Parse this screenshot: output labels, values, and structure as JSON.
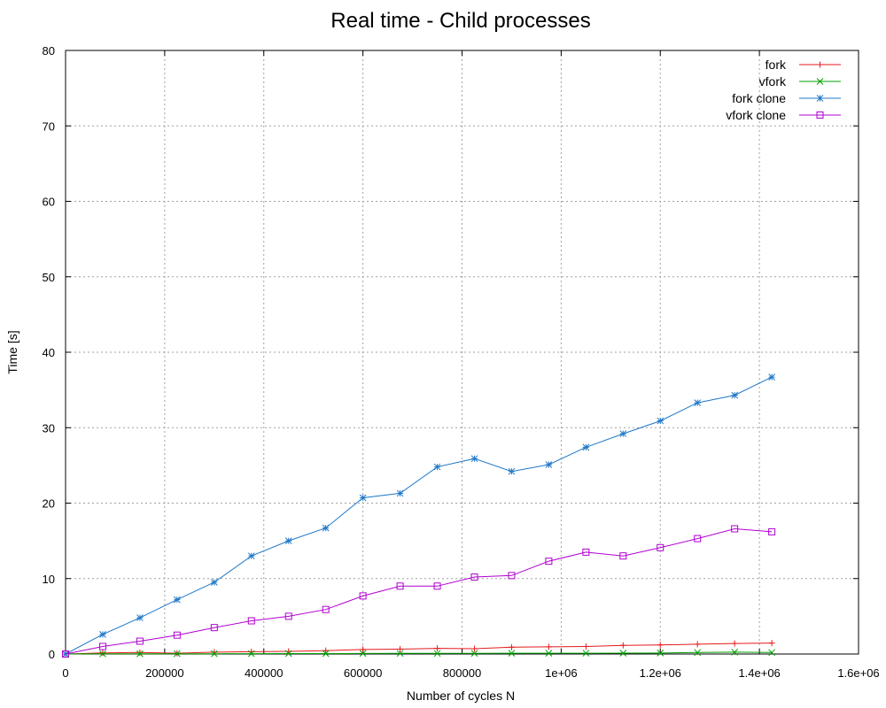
{
  "chart_data": {
    "type": "line",
    "title": "Real time - Child processes",
    "xlabel": "Number of cycles N",
    "ylabel": "Time [s]",
    "xlim": [
      0,
      1600000
    ],
    "ylim": [
      0,
      80
    ],
    "x_ticks": [
      {
        "value": 0,
        "label": "0"
      },
      {
        "value": 200000,
        "label": "200000"
      },
      {
        "value": 400000,
        "label": "400000"
      },
      {
        "value": 600000,
        "label": "600000"
      },
      {
        "value": 800000,
        "label": "800000"
      },
      {
        "value": 1000000,
        "label": "1e+06"
      },
      {
        "value": 1200000,
        "label": "1.2e+06"
      },
      {
        "value": 1400000,
        "label": "1.4e+06"
      },
      {
        "value": 1600000,
        "label": "1.6e+06"
      }
    ],
    "y_ticks": [
      {
        "value": 0,
        "label": "0"
      },
      {
        "value": 10,
        "label": "10"
      },
      {
        "value": 20,
        "label": "20"
      },
      {
        "value": 30,
        "label": "30"
      },
      {
        "value": 40,
        "label": "40"
      },
      {
        "value": 50,
        "label": "50"
      },
      {
        "value": 60,
        "label": "60"
      },
      {
        "value": 70,
        "label": "70"
      },
      {
        "value": 80,
        "label": "80"
      }
    ],
    "grid": true,
    "legend_position": "top-right",
    "x": [
      0,
      75000,
      150000,
      225000,
      300000,
      375000,
      450000,
      525000,
      600000,
      675000,
      750000,
      825000,
      900000,
      975000,
      1050000,
      1125000,
      1200000,
      1275000,
      1350000,
      1425000
    ],
    "series": [
      {
        "name": "fork",
        "color": "#e41a1c",
        "marker": "plus",
        "values": [
          0,
          0.15,
          0.2,
          0.1,
          0.25,
          0.3,
          0.35,
          0.45,
          0.6,
          0.65,
          0.75,
          0.7,
          0.9,
          0.95,
          1.0,
          1.15,
          1.2,
          1.3,
          1.4,
          1.45
        ]
      },
      {
        "name": "vfork",
        "color": "#00a000",
        "marker": "cross",
        "values": [
          0,
          0.02,
          0.03,
          0.04,
          0.04,
          0.05,
          0.06,
          0.06,
          0.07,
          0.08,
          0.08,
          0.09,
          0.1,
          0.1,
          0.11,
          0.12,
          0.13,
          0.2,
          0.25,
          0.2
        ]
      },
      {
        "name": "fork clone",
        "color": "#1f78c8",
        "marker": "star",
        "values": [
          0,
          2.6,
          4.8,
          7.2,
          9.5,
          13.0,
          15.0,
          16.7,
          20.7,
          21.3,
          24.8,
          25.9,
          24.2,
          25.1,
          27.4,
          29.2,
          30.9,
          33.3,
          34.3,
          36.7
        ]
      },
      {
        "name": "vfork clone",
        "color": "#b000d0",
        "marker": "square",
        "values": [
          0,
          1.0,
          1.7,
          2.5,
          3.5,
          4.4,
          5.0,
          5.9,
          7.7,
          9.0,
          9.0,
          10.2,
          10.4,
          12.3,
          13.5,
          13.0,
          14.1,
          15.3,
          16.6,
          16.2
        ]
      }
    ]
  }
}
